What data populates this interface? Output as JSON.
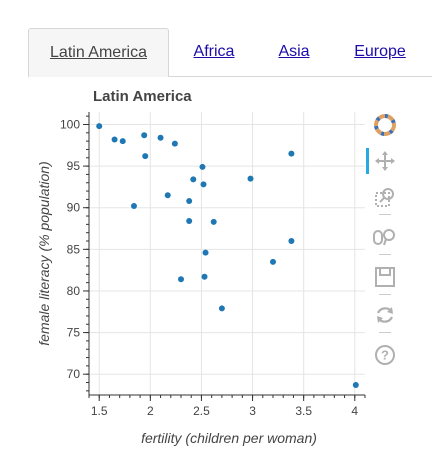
{
  "tabs": [
    {
      "label": "Latin America",
      "active": true
    },
    {
      "label": "Africa",
      "active": false
    },
    {
      "label": "Asia",
      "active": false
    },
    {
      "label": "Europe",
      "active": false
    }
  ],
  "colors": {
    "point": "#1f77b4",
    "toolbar_active": "#26aae1",
    "icon": "#b0b0b0"
  },
  "toolbar": {
    "items": [
      "bokeh-logo-icon",
      "pan-icon",
      "box-zoom-icon",
      "wheel-zoom-icon",
      "save-icon",
      "reset-icon",
      "help-icon"
    ]
  },
  "chart_data": {
    "type": "scatter",
    "title": "Latin America",
    "xlabel": "fertility (children per woman)",
    "ylabel": "female literacy (% population)",
    "xlim": [
      1.4,
      4.1
    ],
    "ylim": [
      67.5,
      101.5
    ],
    "xticks": [
      1.5,
      2,
      2.5,
      3,
      3.5,
      4
    ],
    "xtick_labels": [
      "1.5",
      "2",
      "2.5",
      "3",
      "3.5",
      "4"
    ],
    "yticks": [
      70,
      75,
      80,
      85,
      90,
      95,
      100
    ],
    "ytick_labels": [
      "70",
      "75",
      "80",
      "85",
      "90",
      "95",
      "100"
    ],
    "grid": true,
    "points": [
      {
        "x": 1.5,
        "y": 99.8
      },
      {
        "x": 1.65,
        "y": 98.2
      },
      {
        "x": 1.73,
        "y": 98.0
      },
      {
        "x": 1.94,
        "y": 98.7
      },
      {
        "x": 2.1,
        "y": 98.4
      },
      {
        "x": 2.24,
        "y": 97.7
      },
      {
        "x": 1.95,
        "y": 96.2
      },
      {
        "x": 2.51,
        "y": 94.9
      },
      {
        "x": 2.42,
        "y": 93.4
      },
      {
        "x": 2.52,
        "y": 92.8
      },
      {
        "x": 2.98,
        "y": 93.5
      },
      {
        "x": 3.38,
        "y": 96.5
      },
      {
        "x": 2.17,
        "y": 91.5
      },
      {
        "x": 2.38,
        "y": 90.8
      },
      {
        "x": 1.84,
        "y": 90.2
      },
      {
        "x": 2.38,
        "y": 88.4
      },
      {
        "x": 2.62,
        "y": 88.3
      },
      {
        "x": 3.38,
        "y": 86.0
      },
      {
        "x": 2.54,
        "y": 84.6
      },
      {
        "x": 3.2,
        "y": 83.5
      },
      {
        "x": 2.3,
        "y": 81.4
      },
      {
        "x": 2.53,
        "y": 81.7
      },
      {
        "x": 2.7,
        "y": 77.9
      },
      {
        "x": 4.01,
        "y": 68.7
      }
    ]
  }
}
